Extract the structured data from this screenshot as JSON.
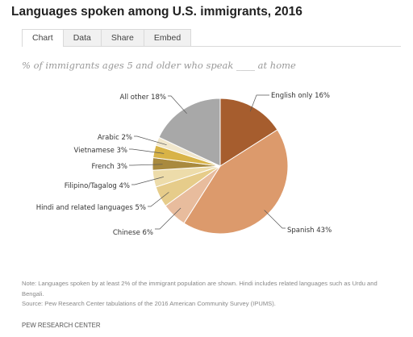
{
  "title": "Languages spoken among U.S. immigrants, 2016",
  "tabs": [
    {
      "label": "Chart",
      "active": true
    },
    {
      "label": "Data",
      "active": false
    },
    {
      "label": "Share",
      "active": false
    },
    {
      "label": "Embed",
      "active": false
    }
  ],
  "chart_data": {
    "type": "pie",
    "title": "Languages spoken among U.S. immigrants, 2016",
    "subtitle": "% of immigrants ages 5 and older who speak ____ at home",
    "slices": [
      {
        "label": "English only 16%",
        "value": 16,
        "color": "#a65d2e"
      },
      {
        "label": "Spanish 43%",
        "value": 43,
        "color": "#dc9a6c"
      },
      {
        "label": "Chinese 6%",
        "value": 6,
        "color": "#e8bc9d"
      },
      {
        "label": "Hindi and related languages 5%",
        "value": 5,
        "color": "#e6cc8a"
      },
      {
        "label": "Filipino/Tagalog 4%",
        "value": 4,
        "color": "#eddcaa"
      },
      {
        "label": "French 3%",
        "value": 3,
        "color": "#a98a3e"
      },
      {
        "label": "Vietnamese 3%",
        "value": 3,
        "color": "#d8b347"
      },
      {
        "label": "Arabic 2%",
        "value": 2,
        "color": "#f1e7cc"
      },
      {
        "label": "All other 18%",
        "value": 18,
        "color": "#a8a8a8"
      }
    ]
  },
  "notes": {
    "note": "Note: Languages spoken by at least 2% of the immigrant population are shown. Hindi includes related languages such as Urdu and Bengali.",
    "source": "Source: Pew Research Center tabulations of the 2016 American Community Survey (IPUMS)."
  },
  "footer": "PEW RESEARCH CENTER"
}
